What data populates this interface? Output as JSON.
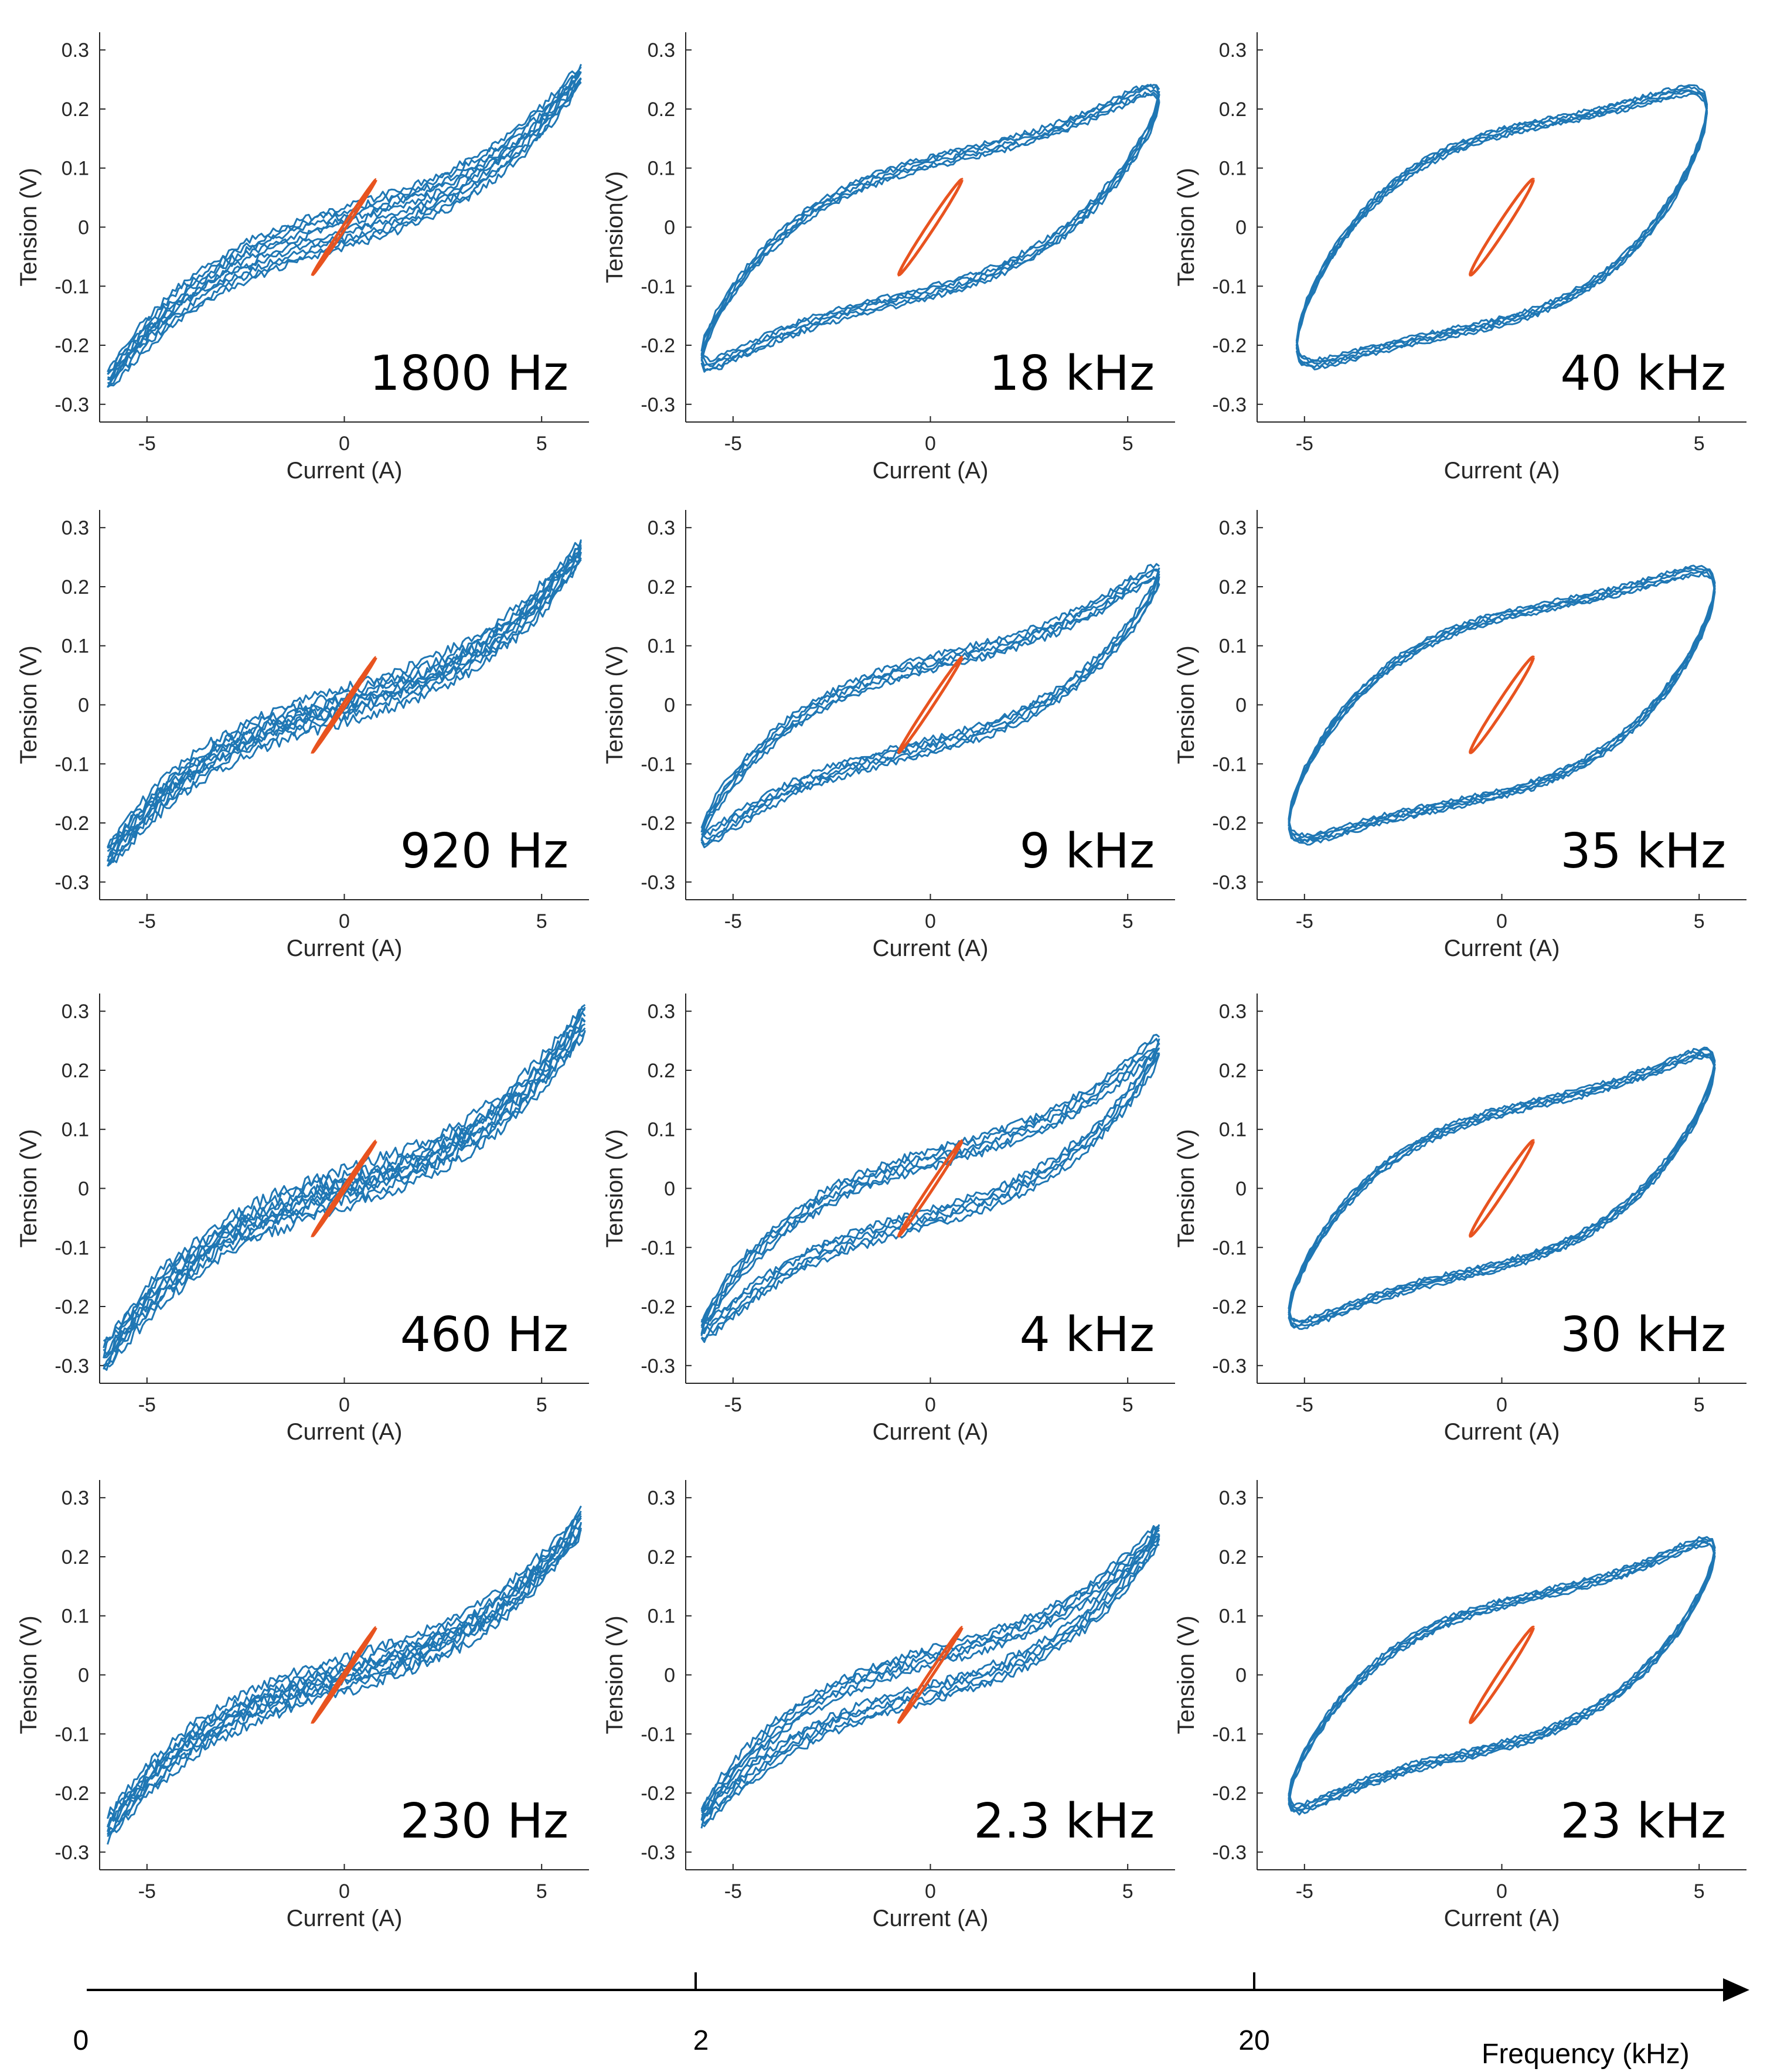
{
  "figure": {
    "colors": {
      "loop_blue": "#1f77b4",
      "small_loop_orange": "#e8531f",
      "axis": "#262626"
    },
    "bottom_axis": {
      "label": "Frequency (kHz)",
      "ticks": [
        "0",
        "2",
        "20"
      ]
    }
  },
  "chart_data": [
    {
      "type": "line",
      "panel": "1800 Hz",
      "row": 1,
      "col": 1,
      "freq_label": "1800 Hz",
      "xlabel": "Current (A)",
      "ylabel": "Tension (V)",
      "xlim": [
        -6.2,
        6.2
      ],
      "ylim": [
        -0.33,
        0.33
      ],
      "xticks": [
        -5,
        0,
        5
      ],
      "yticks": [
        -0.3,
        -0.2,
        -0.1,
        0,
        0.1,
        0.2,
        0.3
      ],
      "loop_width": 0.02,
      "xmax": 6,
      "ymax": 0.26,
      "noise": 0.006,
      "series": [
        {
          "name": "large loop",
          "color": "#1f77b4"
        },
        {
          "name": "small loop",
          "color": "#e8531f"
        }
      ]
    },
    {
      "type": "line",
      "panel": "18 kHz",
      "row": 1,
      "col": 2,
      "freq_label": "18 kHz",
      "xlabel": "Current (A)",
      "ylabel": "Tension(V)",
      "xlim": [
        -6.2,
        6.2
      ],
      "ylim": [
        -0.33,
        0.33
      ],
      "xticks": [
        -5,
        0,
        5
      ],
      "yticks": [
        -0.3,
        -0.2,
        -0.1,
        0,
        0.1,
        0.2,
        0.3
      ],
      "loop_width": 0.11,
      "xmax": 5.8,
      "ymax": 0.22,
      "noise": 0.004,
      "series": [
        {
          "name": "large loop",
          "color": "#1f77b4"
        },
        {
          "name": "small loop",
          "color": "#e8531f"
        }
      ]
    },
    {
      "type": "line",
      "panel": "40 kHz",
      "row": 1,
      "col": 3,
      "freq_label": "40 kHz",
      "xlabel": "Current (A)",
      "ylabel": "Tension (V)",
      "xlim": [
        -6.2,
        6.2
      ],
      "ylim": [
        -0.33,
        0.33
      ],
      "xticks": [
        -5,
        5
      ],
      "yticks": [
        -0.3,
        -0.2,
        -0.1,
        0,
        0.1,
        0.2,
        0.3
      ],
      "loop_width": 0.16,
      "xmax": 5.2,
      "ymax": 0.2,
      "noise": 0.003,
      "series": [
        {
          "name": "large loop",
          "color": "#1f77b4"
        },
        {
          "name": "small loop",
          "color": "#e8531f"
        }
      ]
    },
    {
      "type": "line",
      "panel": "920 Hz",
      "row": 2,
      "col": 1,
      "freq_label": "920 Hz",
      "xlabel": "Current (A)",
      "ylabel": "Tension (V)",
      "xlim": [
        -6.2,
        6.2
      ],
      "ylim": [
        -0.33,
        0.33
      ],
      "xticks": [
        -5,
        0,
        5
      ],
      "yticks": [
        -0.3,
        -0.2,
        -0.1,
        0,
        0.1,
        0.2,
        0.3
      ],
      "loop_width": 0.01,
      "xmax": 6,
      "ymax": 0.26,
      "noise": 0.008,
      "series": [
        {
          "name": "large loop",
          "color": "#1f77b4"
        },
        {
          "name": "small loop",
          "color": "#e8531f"
        }
      ]
    },
    {
      "type": "line",
      "panel": "9 kHz",
      "row": 2,
      "col": 2,
      "freq_label": "9 kHz",
      "xlabel": "Current (A)",
      "ylabel": "Tension (V)",
      "xlim": [
        -6.2,
        6.2
      ],
      "ylim": [
        -0.33,
        0.33
      ],
      "xticks": [
        -5,
        0,
        5
      ],
      "yticks": [
        -0.3,
        -0.2,
        -0.1,
        0,
        0.1,
        0.2,
        0.3
      ],
      "loop_width": 0.07,
      "xmax": 5.8,
      "ymax": 0.22,
      "noise": 0.005,
      "series": [
        {
          "name": "large loop",
          "color": "#1f77b4"
        },
        {
          "name": "small loop",
          "color": "#e8531f"
        }
      ]
    },
    {
      "type": "line",
      "panel": "35 kHz",
      "row": 2,
      "col": 3,
      "freq_label": "35 kHz",
      "xlabel": "Current (A)",
      "ylabel": "Tension (V)",
      "xlim": [
        -6.2,
        6.2
      ],
      "ylim": [
        -0.33,
        0.33
      ],
      "xticks": [
        -5,
        0,
        5
      ],
      "yticks": [
        -0.3,
        -0.2,
        -0.1,
        0,
        0.1,
        0.2,
        0.3
      ],
      "loop_width": 0.15,
      "xmax": 5.4,
      "ymax": 0.2,
      "noise": 0.003,
      "series": [
        {
          "name": "large loop",
          "color": "#1f77b4"
        },
        {
          "name": "small loop",
          "color": "#e8531f"
        }
      ]
    },
    {
      "type": "line",
      "panel": "460 Hz",
      "row": 3,
      "col": 1,
      "freq_label": "460 Hz",
      "xlabel": "Current (A)",
      "ylabel": "Tension (V)",
      "xlim": [
        -6.2,
        6.2
      ],
      "ylim": [
        -0.33,
        0.33
      ],
      "xticks": [
        -5,
        0,
        5
      ],
      "yticks": [
        -0.3,
        -0.2,
        -0.1,
        0,
        0.1,
        0.2,
        0.3
      ],
      "loop_width": 0.01,
      "xmax": 6.1,
      "ymax": 0.29,
      "noise": 0.009,
      "series": [
        {
          "name": "large loop",
          "color": "#1f77b4"
        },
        {
          "name": "small loop",
          "color": "#e8531f"
        }
      ]
    },
    {
      "type": "line",
      "panel": "4 kHz",
      "row": 3,
      "col": 2,
      "freq_label": "4 kHz",
      "xlabel": "Current (A)",
      "ylabel": "Tension (V)",
      "xlim": [
        -6.2,
        6.2
      ],
      "ylim": [
        -0.33,
        0.33
      ],
      "xticks": [
        -5,
        0,
        5
      ],
      "yticks": [
        -0.3,
        -0.2,
        -0.1,
        0,
        0.1,
        0.2,
        0.3
      ],
      "loop_width": 0.05,
      "xmax": 5.8,
      "ymax": 0.24,
      "noise": 0.006,
      "series": [
        {
          "name": "large loop",
          "color": "#1f77b4"
        },
        {
          "name": "small loop",
          "color": "#e8531f"
        }
      ]
    },
    {
      "type": "line",
      "panel": "30 kHz",
      "row": 3,
      "col": 3,
      "freq_label": "30 kHz",
      "xlabel": "Current (A)",
      "ylabel": "Tension (V)",
      "xlim": [
        -6.2,
        6.2
      ],
      "ylim": [
        -0.33,
        0.33
      ],
      "xticks": [
        -5,
        0,
        5
      ],
      "yticks": [
        -0.3,
        -0.2,
        -0.1,
        0,
        0.1,
        0.2,
        0.3
      ],
      "loop_width": 0.13,
      "xmax": 5.4,
      "ymax": 0.21,
      "noise": 0.003,
      "series": [
        {
          "name": "large loop",
          "color": "#1f77b4"
        },
        {
          "name": "small loop",
          "color": "#e8531f"
        }
      ]
    },
    {
      "type": "line",
      "panel": "230 Hz",
      "row": 4,
      "col": 1,
      "freq_label": "230 Hz",
      "xlabel": "Current (A)",
      "ylabel": "Tension (V)",
      "xlim": [
        -6.2,
        6.2
      ],
      "ylim": [
        -0.33,
        0.33
      ],
      "xticks": [
        -5,
        0,
        5
      ],
      "yticks": [
        -0.3,
        -0.2,
        -0.1,
        0,
        0.1,
        0.2,
        0.3
      ],
      "loop_width": 0.01,
      "xmax": 6,
      "ymax": 0.26,
      "noise": 0.008,
      "series": [
        {
          "name": "large loop",
          "color": "#1f77b4"
        },
        {
          "name": "small loop",
          "color": "#e8531f"
        }
      ]
    },
    {
      "type": "line",
      "panel": "2.3 kHz",
      "row": 4,
      "col": 2,
      "freq_label": "2.3 kHz",
      "xlabel": "Current (A)",
      "ylabel": "Tension (V)",
      "xlim": [
        -6.2,
        6.2
      ],
      "ylim": [
        -0.33,
        0.33
      ],
      "xticks": [
        -5,
        0,
        5
      ],
      "yticks": [
        -0.3,
        -0.2,
        -0.1,
        0,
        0.1,
        0.2,
        0.3
      ],
      "loop_width": 0.03,
      "xmax": 5.8,
      "ymax": 0.24,
      "noise": 0.006,
      "series": [
        {
          "name": "large loop",
          "color": "#1f77b4"
        },
        {
          "name": "small loop",
          "color": "#e8531f"
        }
      ]
    },
    {
      "type": "line",
      "panel": "23 kHz",
      "row": 4,
      "col": 3,
      "freq_label": "23 kHz",
      "xlabel": "Current (A)",
      "ylabel": "Tension (V)",
      "xlim": [
        -6.2,
        6.2
      ],
      "ylim": [
        -0.33,
        0.33
      ],
      "xticks": [
        -5,
        0,
        5
      ],
      "yticks": [
        -0.3,
        -0.2,
        -0.1,
        0,
        0.1,
        0.2,
        0.3
      ],
      "loop_width": 0.12,
      "xmax": 5.4,
      "ymax": 0.21,
      "noise": 0.003,
      "series": [
        {
          "name": "large loop",
          "color": "#1f77b4"
        },
        {
          "name": "small loop",
          "color": "#e8531f"
        }
      ]
    }
  ]
}
